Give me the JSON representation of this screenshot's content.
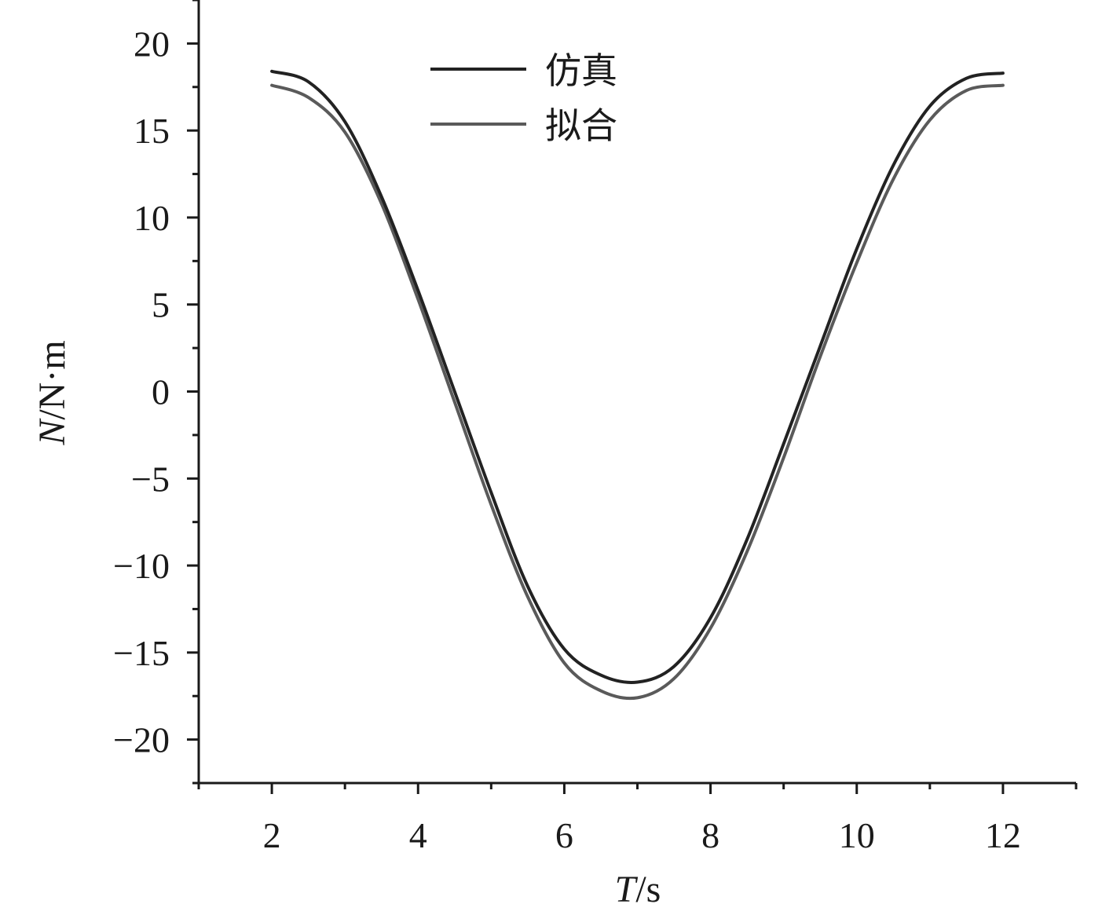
{
  "chart_data": {
    "type": "line",
    "title": "",
    "xlabel": {
      "italic": "T",
      "rest": "/s"
    },
    "ylabel": {
      "italic": "N",
      "rest": "/N·m"
    },
    "xlim": [
      1,
      13
    ],
    "ylim": [
      -22.5,
      22.5
    ],
    "xticks": [
      2,
      4,
      6,
      8,
      10,
      12
    ],
    "xtick_labels": [
      "2",
      "4",
      "6",
      "8",
      "10",
      "12"
    ],
    "xminor": [
      1,
      3,
      5,
      7,
      9,
      11,
      13
    ],
    "yticks": [
      -20,
      -15,
      -10,
      -5,
      0,
      5,
      10,
      15,
      20
    ],
    "ytick_labels": [
      "−20",
      "−15",
      "−10",
      "−5",
      "0",
      "5",
      "10",
      "15",
      "20"
    ],
    "yminor": [
      -22.5,
      -17.5,
      -12.5,
      -7.5,
      -2.5,
      2.5,
      7.5,
      12.5,
      17.5,
      22.5
    ],
    "grid": false,
    "legend_position": "top-center",
    "series": [
      {
        "name": "仿真",
        "color": "#222222",
        "x": [
          2.0,
          2.5,
          3.0,
          3.5,
          4.0,
          4.5,
          5.0,
          5.5,
          6.0,
          6.5,
          7.0,
          7.5,
          8.0,
          8.5,
          9.0,
          9.5,
          10.0,
          10.5,
          11.0,
          11.5,
          12.0
        ],
        "y": [
          18.4,
          17.8,
          15.5,
          11.2,
          5.8,
          0.0,
          -5.8,
          -11.2,
          -14.8,
          -16.3,
          -16.7,
          -15.8,
          -13.0,
          -8.5,
          -3.0,
          2.6,
          8.2,
          13.0,
          16.4,
          18.0,
          18.3
        ]
      },
      {
        "name": "拟合",
        "color": "#5a5a5a",
        "x": [
          2.0,
          2.5,
          3.0,
          3.5,
          4.0,
          4.5,
          5.0,
          5.5,
          6.0,
          6.5,
          7.0,
          7.5,
          8.0,
          8.5,
          9.0,
          9.5,
          10.0,
          10.5,
          11.0,
          11.5,
          12.0
        ],
        "y": [
          17.6,
          16.9,
          14.9,
          10.8,
          5.3,
          -0.6,
          -6.5,
          -11.8,
          -15.6,
          -17.2,
          -17.6,
          -16.5,
          -13.6,
          -9.2,
          -3.8,
          2.0,
          7.4,
          12.2,
          15.6,
          17.3,
          17.6
        ]
      }
    ]
  }
}
